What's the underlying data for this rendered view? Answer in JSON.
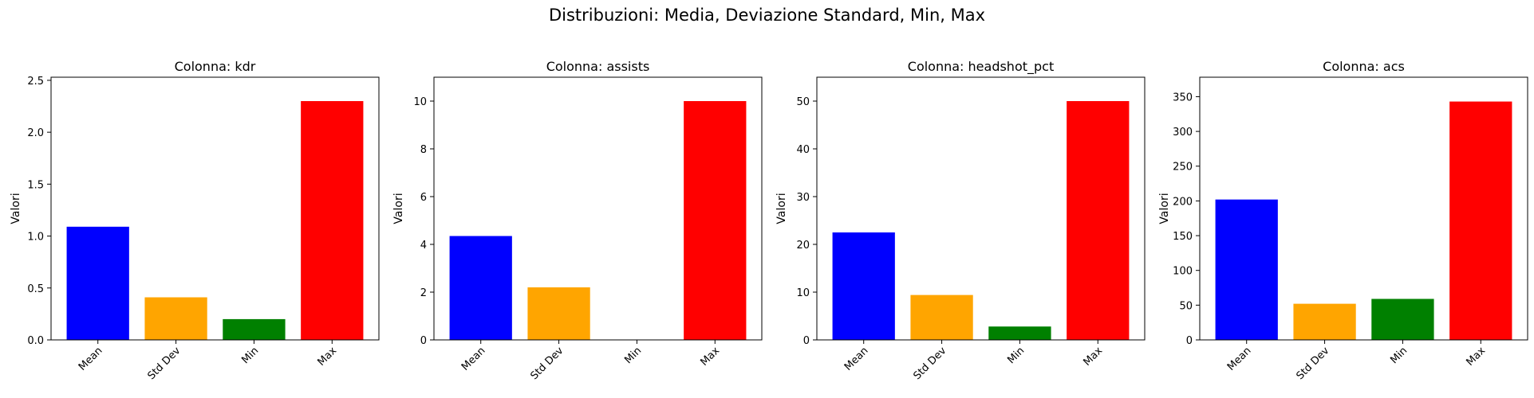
{
  "suptitle": "Distribuzioni: Media, Deviazione Standard, Min, Max",
  "chart_data": [
    {
      "type": "bar",
      "title": "Colonna: kdr",
      "xlabel": "",
      "ylabel": "Valori",
      "categories": [
        "Mean",
        "Std Dev",
        "Min",
        "Max"
      ],
      "values": [
        1.09,
        0.41,
        0.2,
        2.3
      ],
      "colors": [
        "#0000ff",
        "#ffa500",
        "#008000",
        "#ff0000"
      ],
      "ylim": [
        0,
        2.53
      ],
      "yticks": [
        0.0,
        0.5,
        1.0,
        1.5,
        2.0,
        2.5
      ],
      "ytick_labels": [
        "0.0",
        "0.5",
        "1.0",
        "1.5",
        "2.0",
        "2.5"
      ],
      "grid": false
    },
    {
      "type": "bar",
      "title": "Colonna: assists",
      "xlabel": "",
      "ylabel": "Valori",
      "categories": [
        "Mean",
        "Std Dev",
        "Min",
        "Max"
      ],
      "values": [
        4.35,
        2.2,
        0,
        10
      ],
      "colors": [
        "#0000ff",
        "#ffa500",
        "#008000",
        "#ff0000"
      ],
      "ylim": [
        0,
        11
      ],
      "yticks": [
        0,
        2,
        4,
        6,
        8,
        10
      ],
      "ytick_labels": [
        "0",
        "2",
        "4",
        "6",
        "8",
        "10"
      ],
      "grid": false
    },
    {
      "type": "bar",
      "title": "Colonna: headshot_pct",
      "xlabel": "",
      "ylabel": "Valori",
      "categories": [
        "Mean",
        "Std Dev",
        "Min",
        "Max"
      ],
      "values": [
        22.5,
        9.4,
        2.8,
        50
      ],
      "colors": [
        "#0000ff",
        "#ffa500",
        "#008000",
        "#ff0000"
      ],
      "ylim": [
        0,
        55
      ],
      "yticks": [
        0,
        10,
        20,
        30,
        40,
        50
      ],
      "ytick_labels": [
        "0",
        "10",
        "20",
        "30",
        "40",
        "50"
      ],
      "grid": false
    },
    {
      "type": "bar",
      "title": "Colonna: acs",
      "xlabel": "",
      "ylabel": "Valori",
      "categories": [
        "Mean",
        "Std Dev",
        "Min",
        "Max"
      ],
      "values": [
        202,
        52,
        59,
        343
      ],
      "colors": [
        "#0000ff",
        "#ffa500",
        "#008000",
        "#ff0000"
      ],
      "ylim": [
        0,
        378
      ],
      "yticks": [
        0,
        50,
        100,
        150,
        200,
        250,
        300,
        350
      ],
      "ytick_labels": [
        "0",
        "50",
        "100",
        "150",
        "200",
        "250",
        "300",
        "350"
      ],
      "grid": false
    }
  ]
}
